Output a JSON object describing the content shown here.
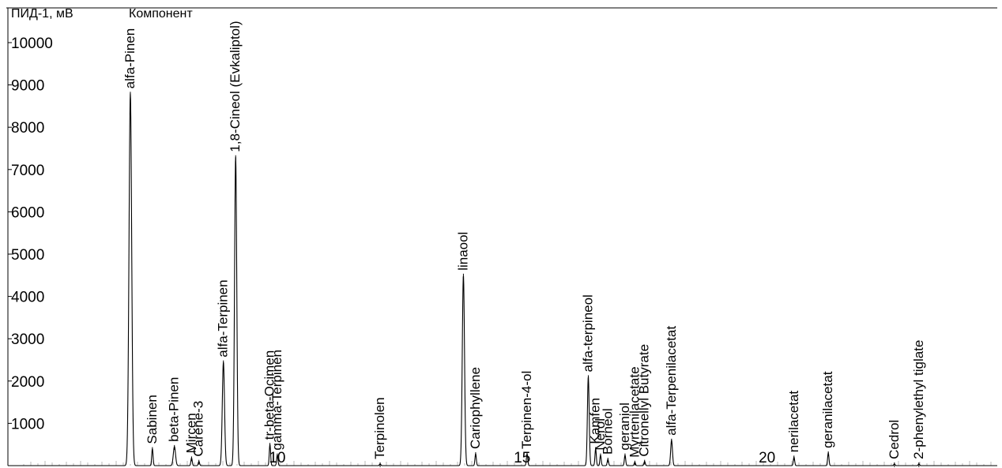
{
  "chart_data": {
    "type": "line",
    "title": "",
    "ylabel": "ПИД-1, мВ",
    "peak_header": "Компонент",
    "xlabel": "",
    "xlim": [
      4.5,
      24.7
    ],
    "ylim": [
      0,
      10500
    ],
    "yticks": [
      1000,
      2000,
      3000,
      4000,
      5000,
      6000,
      7000,
      8000,
      9000,
      10000
    ],
    "ytick_labels": [
      "1000",
      "2000",
      "3000",
      "4000",
      "5000",
      "6000",
      "7000",
      "8000",
      "9000",
      "10000"
    ],
    "xticks": [
      10,
      15,
      20
    ],
    "xtick_labels": [
      "10",
      "15",
      "20"
    ],
    "grid": false,
    "series": [
      {
        "peaks": [
          {
            "name": "alfa-Pinen",
            "rt": 7.0,
            "height": 8800,
            "width": 0.06
          },
          {
            "name": "Sabinen",
            "rt": 7.45,
            "height": 400,
            "width": 0.03
          },
          {
            "name": "beta-Pinen",
            "rt": 7.9,
            "height": 450,
            "width": 0.05
          },
          {
            "name": "Mircen",
            "rt": 8.25,
            "height": 180,
            "width": 0.03
          },
          {
            "name": "Carene-3",
            "rt": 8.4,
            "height": 100,
            "width": 0.03
          },
          {
            "name": "alfa-Terpinen",
            "rt": 8.9,
            "height": 2450,
            "width": 0.05
          },
          {
            "name": "1,8-Cineol (Evkaliptol)",
            "rt": 9.15,
            "height": 7300,
            "width": 0.05
          },
          {
            "name": "tr-beta-Ocimen",
            "rt": 9.85,
            "height": 500,
            "width": 0.03
          },
          {
            "name": "gamma-Terpinen",
            "rt": 10.0,
            "height": 250,
            "width": 0.03
          },
          {
            "name": "Terpinolen",
            "rt": 12.1,
            "height": 40,
            "width": 0.03
          },
          {
            "name": "linaool",
            "rt": 13.8,
            "height": 4500,
            "width": 0.05
          },
          {
            "name": "Cariophyllene",
            "rt": 14.05,
            "height": 280,
            "width": 0.03
          },
          {
            "name": "Terpinen-4-ol",
            "rt": 15.1,
            "height": 280,
            "width": 0.03
          },
          {
            "name": "alfa-terpineol",
            "rt": 16.35,
            "height": 2100,
            "width": 0.04
          },
          {
            "name": "Kamfen",
            "rt": 16.5,
            "height": 400,
            "width": 0.03
          },
          {
            "name": "Nerol",
            "rt": 16.6,
            "height": 250,
            "width": 0.03
          },
          {
            "name": "Borneol",
            "rt": 16.75,
            "height": 150,
            "width": 0.03
          },
          {
            "name": "geraniol",
            "rt": 17.1,
            "height": 250,
            "width": 0.03
          },
          {
            "name": "Myrtenilacetate",
            "rt": 17.3,
            "height": 80,
            "width": 0.03
          },
          {
            "name": "Citronellyl Butyrate",
            "rt": 17.5,
            "height": 100,
            "width": 0.03
          },
          {
            "name": "alfa-Terpenilacetat",
            "rt": 18.05,
            "height": 600,
            "width": 0.04
          },
          {
            "name": "nerilacetat",
            "rt": 20.55,
            "height": 200,
            "width": 0.03
          },
          {
            "name": "geranilacetat",
            "rt": 21.25,
            "height": 300,
            "width": 0.03
          },
          {
            "name": "Cedrol",
            "rt": 22.6,
            "height": 40,
            "width": 0.03
          },
          {
            "name": "2-phenylethyl tiglate",
            "rt": 23.1,
            "height": 40,
            "width": 0.03
          }
        ]
      }
    ],
    "colors": {
      "trace": "#000000",
      "axis": "#000000",
      "baseline_noise": "#888888"
    }
  }
}
